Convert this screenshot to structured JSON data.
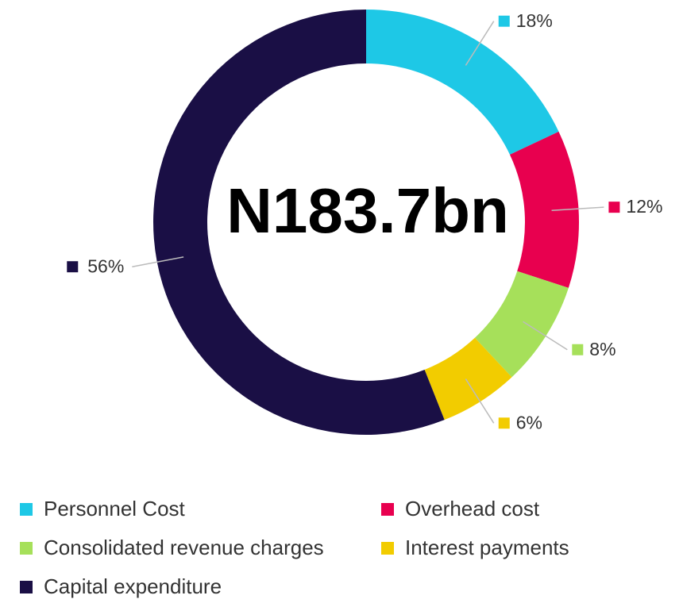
{
  "chart_data": {
    "type": "donut",
    "center_label": "N183.7bn",
    "categories": [
      "Personnel Cost",
      "Overhead cost",
      "Consolidated revenue charges",
      "Interest payments",
      "Capital expenditure"
    ],
    "values": [
      18,
      12,
      8,
      6,
      56
    ],
    "value_labels": [
      "18%",
      "12%",
      "8%",
      "6%",
      "56%"
    ],
    "colors": [
      "#1ec8e6",
      "#e8004f",
      "#a6e05a",
      "#f2cc00",
      "#1a0f45"
    ],
    "legend": "bottom"
  }
}
